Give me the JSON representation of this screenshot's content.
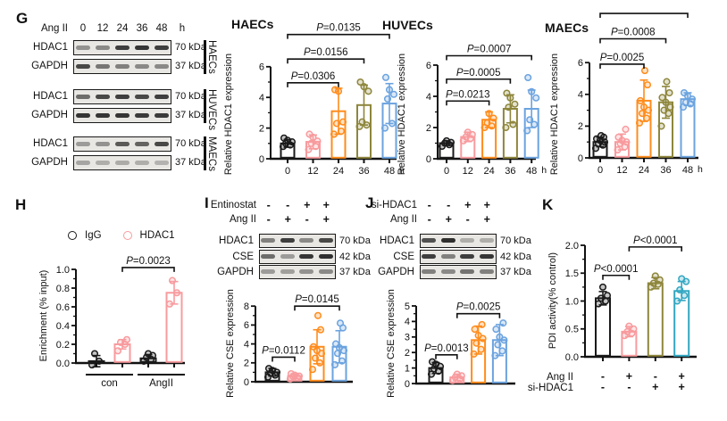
{
  "colors": {
    "black": "#1a1a1a",
    "pink": "#f89b9e",
    "orange": "#ff8c1c",
    "olive": "#8e863c",
    "blue": "#6ba3df",
    "teal": "#33a7c2",
    "axis": "#111111"
  },
  "panels": {
    "G": {
      "label": "G",
      "blot": {
        "header": {
          "label": "Ang II",
          "values": [
            "0",
            "12",
            "24",
            "36",
            "48"
          ],
          "suffix": "h"
        },
        "groups": [
          {
            "cell_line": "HAECs",
            "rows": [
              {
                "protein": "HDAC1",
                "kda": "70 kDa",
                "bands": [
                  0.45,
                  0.5,
                  0.9,
                  0.95,
                  0.9
                ]
              },
              {
                "protein": "GAPDH",
                "kda": "37 kDa",
                "bands": [
                  0.85,
                  0.6,
                  0.55,
                  0.5,
                  0.5
                ]
              }
            ]
          },
          {
            "cell_line": "HUVECs",
            "rows": [
              {
                "protein": "HDAC1",
                "kda": "70 kDa",
                "bands": [
                  0.65,
                  0.85,
                  0.9,
                  0.85,
                  0.9
                ]
              },
              {
                "protein": "GAPDH",
                "kda": "37 kDa",
                "bands": [
                  0.95,
                  0.95,
                  0.95,
                  0.92,
                  0.92
                ]
              }
            ]
          },
          {
            "cell_line": "MAECs",
            "rows": [
              {
                "protein": "HDAC1",
                "kda": "70 kDa",
                "bands": [
                  0.4,
                  0.45,
                  0.75,
                  0.7,
                  0.85
                ]
              },
              {
                "protein": "GAPDH",
                "kda": "37 kDa",
                "bands": [
                  0.35,
                  0.3,
                  0.32,
                  0.3,
                  0.28
                ]
              }
            ]
          }
        ]
      }
    },
    "H": {
      "label": "H",
      "legend": [
        {
          "label": "IgG",
          "color": "black"
        },
        {
          "label": "HDAC1",
          "color": "pink"
        }
      ]
    },
    "I": {
      "label": "I",
      "blot": {
        "header_rows": [
          {
            "label": "Entinostat",
            "values": [
              "-",
              "-",
              "+",
              "+"
            ]
          },
          {
            "label": "Ang II",
            "values": [
              "-",
              "+",
              "-",
              "+"
            ]
          }
        ],
        "rows": [
          {
            "protein": "HDAC1",
            "kda": "70 kDa",
            "bands": [
              0.55,
              0.9,
              0.5,
              0.85
            ]
          },
          {
            "protein": "CSE",
            "kda": "42 kDa",
            "bands": [
              0.65,
              0.4,
              0.95,
              0.98
            ]
          },
          {
            "protein": "GAPDH",
            "kda": "37 kDa",
            "bands": [
              0.4,
              0.38,
              0.45,
              0.5
            ]
          }
        ]
      }
    },
    "J": {
      "label": "J",
      "blot": {
        "header_rows": [
          {
            "label": "si-HDAC1",
            "values": [
              "-",
              "-",
              "+",
              "+"
            ]
          },
          {
            "label": "Ang II",
            "values": [
              "-",
              "+",
              "-",
              "+"
            ]
          }
        ],
        "rows": [
          {
            "protein": "HDAC1",
            "kda": "70 kDa",
            "bands": [
              0.8,
              0.98,
              0.3,
              0.3
            ]
          },
          {
            "protein": "CSE",
            "kda": "42 kDa",
            "bands": [
              0.9,
              0.55,
              0.9,
              0.95
            ]
          },
          {
            "protein": "GAPDH",
            "kda": "37 kDa",
            "bands": [
              0.55,
              0.5,
              0.62,
              0.55
            ]
          }
        ]
      }
    },
    "K": {
      "label": "K"
    }
  },
  "chart_data": [
    {
      "id": "haecs",
      "type": "bar",
      "title": "HAECs",
      "ylabel": "Relative HDAC1 expression",
      "categories": [
        "0",
        "12",
        "24",
        "36",
        "48"
      ],
      "x_suffix": "h",
      "values": [
        1.0,
        1.1,
        3.1,
        3.5,
        3.6
      ],
      "errors": [
        0.25,
        0.45,
        1.5,
        1.3,
        1.3
      ],
      "points": [
        [
          0.8,
          0.9,
          1.0,
          1.1,
          1.2,
          1.35
        ],
        [
          0.6,
          0.8,
          1.0,
          1.15,
          1.4,
          1.6
        ],
        [
          1.6,
          1.8,
          2.3,
          2.4,
          4.4,
          4.5
        ],
        [
          2.1,
          2.2,
          2.4,
          4.4,
          4.7,
          5.0
        ],
        [
          2.0,
          2.3,
          3.9,
          4.2,
          4.5,
          5.3
        ]
      ],
      "colors": [
        "black",
        "pink",
        "orange",
        "olive",
        "blue"
      ],
      "ylim": [
        0,
        6
      ],
      "yticks": [
        0,
        2,
        4,
        6
      ],
      "brackets": [
        {
          "from": 0,
          "to": 2,
          "y": 4.95,
          "label": "P=0.0306"
        },
        {
          "from": 0,
          "to": 3,
          "y": 6.5,
          "label": "P=0.0156"
        },
        {
          "from": 0,
          "to": 4,
          "y": 8.1,
          "label": "P=0.0135"
        }
      ],
      "layout": {
        "left": 65,
        "xpad": 19,
        "step": 28.5,
        "right": 6,
        "bottom": 30,
        "ppu": 17.2,
        "barw": 15,
        "xticks": true
      }
    },
    {
      "id": "huvecs",
      "type": "bar",
      "title": "HUVECs",
      "ylabel": "Relative HDAC1 expression",
      "categories": [
        "0",
        "12",
        "24",
        "36",
        "48"
      ],
      "x_suffix": "h",
      "values": [
        1.0,
        1.4,
        2.5,
        3.2,
        3.2
      ],
      "errors": [
        0.15,
        0.3,
        0.5,
        0.9,
        1.2
      ],
      "points": [
        [
          0.8,
          0.9,
          1.0,
          1.05,
          1.15
        ],
        [
          1.15,
          1.3,
          1.4,
          1.55,
          1.7
        ],
        [
          2.0,
          2.1,
          2.3,
          2.6,
          2.9
        ],
        [
          2.0,
          2.2,
          3.3,
          3.5,
          3.9,
          4.2
        ],
        [
          1.8,
          2.2,
          2.5,
          3.9,
          4.3,
          5.2
        ]
      ],
      "colors": [
        "black",
        "pink",
        "orange",
        "olive",
        "blue"
      ],
      "ylim": [
        0,
        6
      ],
      "yticks": [
        0,
        2,
        4,
        6
      ],
      "brackets": [
        {
          "from": 0,
          "to": 2,
          "y": 3.7,
          "label": "P=0.0213"
        },
        {
          "from": 0,
          "to": 3,
          "y": 5.1,
          "label": "P=0.0005"
        },
        {
          "from": 0,
          "to": 4,
          "y": 6.6,
          "label": "P=0.0007"
        }
      ],
      "layout": {
        "left": 65,
        "xpad": 10,
        "step": 23.8,
        "right": 25,
        "bottom": 30,
        "ppu": 17.5,
        "barw": 15,
        "xticks": true
      }
    },
    {
      "id": "maecs",
      "type": "bar",
      "title": "MAECs",
      "ylabel": "Relative HDAC1 expression",
      "categories": [
        "0",
        "12",
        "24",
        "36",
        "48"
      ],
      "x_suffix": "h",
      "values": [
        1.0,
        1.0,
        3.6,
        3.5,
        3.7
      ],
      "errors": [
        0.3,
        0.5,
        1.3,
        1.0,
        0.4
      ],
      "points": [
        [
          0.6,
          0.8,
          0.9,
          1.0,
          1.1,
          1.2,
          1.3,
          1.4
        ],
        [
          0.5,
          0.7,
          0.9,
          1.0,
          1.1,
          1.3,
          1.8
        ],
        [
          2.2,
          2.5,
          2.8,
          3.0,
          3.2,
          3.6,
          4.6,
          5.5
        ],
        [
          2.0,
          2.8,
          3.0,
          3.2,
          3.5,
          3.8,
          4.1,
          4.8
        ],
        [
          3.2,
          3.4,
          3.5,
          3.7,
          3.9,
          4.1
        ]
      ],
      "colors": [
        "black",
        "pink",
        "orange",
        "olive",
        "blue"
      ],
      "ylim": [
        0,
        6
      ],
      "yticks": [
        0,
        2,
        4,
        6
      ],
      "brackets": [
        {
          "from": 0,
          "to": 2,
          "y": 5.9,
          "label": "P=0.0025"
        },
        {
          "from": 0,
          "to": 3,
          "y": 7.5,
          "label": "P=0.0008"
        },
        {
          "from": 0,
          "to": 4,
          "y": 9.1,
          "label": ""
        }
      ],
      "layout": {
        "left": 48,
        "xpad": 12,
        "step": 24.5,
        "right": 30,
        "bottom": 31,
        "ppu": 17.8,
        "barw": 15,
        "xticks": true
      }
    },
    {
      "id": "chip-enrichment",
      "type": "bar",
      "ylabel": "Enrichment (% input)",
      "values": [
        0.02,
        0.2,
        0.05,
        0.75
      ],
      "errors": [
        0.06,
        0.05,
        0.04,
        0.12
      ],
      "points": [
        [
          -0.02,
          0.02,
          0.1
        ],
        [
          0.13,
          0.2,
          0.22,
          0.25
        ],
        [
          0.02,
          0.04,
          0.06,
          0.08,
          0.1
        ],
        [
          0.63,
          0.75,
          0.88
        ]
      ],
      "colors": [
        "black",
        "pink",
        "black",
        "pink"
      ],
      "ylim": [
        0,
        1
      ],
      "yticks": [
        0,
        0.2,
        0.4,
        0.6,
        0.8,
        1
      ],
      "ytick_labels": [
        "0.0",
        "0.2",
        "0.4",
        "0.6",
        "0.8",
        "1.0"
      ],
      "group_labels": [
        {
          "label": "con",
          "from": 0,
          "to": 1
        },
        {
          "label": "AngII",
          "from": 2,
          "to": 3
        }
      ],
      "brackets": [
        {
          "from": 1,
          "to": 3,
          "y": 1.02,
          "label": "P=0.0023"
        }
      ],
      "layout": {
        "left": 45,
        "xpad": 23,
        "step": 29,
        "right": 33,
        "bottom": 38,
        "ppu": 105,
        "barw": 17,
        "xticks": true
      }
    },
    {
      "id": "cse-entinostat",
      "type": "bar",
      "ylabel": "Relative CSE expression",
      "values": [
        1.0,
        0.6,
        3.7,
        3.7
      ],
      "errors": [
        0.4,
        0.25,
        1.8,
        1.7
      ],
      "points": [
        [
          0.5,
          0.7,
          0.9,
          1.0,
          1.2,
          1.4
        ],
        [
          0.3,
          0.45,
          0.55,
          0.6,
          0.7,
          0.85
        ],
        [
          1.3,
          2.0,
          2.5,
          3.0,
          3.3,
          3.7,
          5.5,
          7.0
        ],
        [
          1.8,
          2.2,
          3.0,
          3.3,
          3.6,
          4.0,
          5.7,
          6.2
        ]
      ],
      "colors": [
        "black",
        "pink",
        "orange",
        "blue"
      ],
      "ylim": [
        0,
        8
      ],
      "yticks": [
        0,
        2,
        4,
        6,
        8
      ],
      "brackets": [
        {
          "from": 0,
          "to": 1,
          "y": 2.6,
          "label": "P=0.0112"
        },
        {
          "from": 1,
          "to": 3,
          "y": 8.0,
          "label": "P=0.0145"
        }
      ],
      "layout": {
        "left": 44,
        "xpad": 19,
        "step": 25,
        "right": 22,
        "bottom": 12,
        "ppu": 10.6,
        "barw": 15,
        "xticks": false
      }
    },
    {
      "id": "cse-sihdac1",
      "type": "bar",
      "ylabel": "Relative CSE expression",
      "values": [
        1.0,
        0.4,
        2.8,
        2.8
      ],
      "errors": [
        0.35,
        0.2,
        0.9,
        1.0
      ],
      "points": [
        [
          0.6,
          0.8,
          0.95,
          1.1,
          1.25,
          1.4
        ],
        [
          0.2,
          0.3,
          0.4,
          0.5,
          0.6
        ],
        [
          1.9,
          2.2,
          2.6,
          2.9,
          3.1,
          3.5,
          3.8
        ],
        [
          1.8,
          2.1,
          2.5,
          2.8,
          3.0,
          3.5,
          3.9
        ]
      ],
      "colors": [
        "black",
        "pink",
        "orange",
        "blue"
      ],
      "ylim": [
        0,
        5
      ],
      "yticks": [
        0,
        1,
        2,
        3,
        4,
        5
      ],
      "brackets": [
        {
          "from": 0,
          "to": 1,
          "y": 1.85,
          "label": "P=0.0013"
        },
        {
          "from": 1,
          "to": 3,
          "y": 4.5,
          "label": "P=0.0025"
        }
      ],
      "layout": {
        "left": 44,
        "xpad": 22,
        "step": 23.8,
        "right": 20,
        "bottom": 10,
        "ppu": 17.4,
        "barw": 15,
        "xticks": false
      }
    },
    {
      "id": "pdi-activity",
      "type": "bar",
      "ylabel": "PDI activity(% control)",
      "values": [
        1.05,
        0.45,
        1.32,
        1.18
      ],
      "errors": [
        0.12,
        0.09,
        0.1,
        0.17
      ],
      "points": [
        [
          0.95,
          1.0,
          1.05,
          1.1,
          1.25
        ],
        [
          0.38,
          0.42,
          0.45,
          0.5,
          0.55
        ],
        [
          1.25,
          1.3,
          1.32,
          1.38,
          1.45
        ],
        [
          1.0,
          1.1,
          1.2,
          1.35,
          1.4
        ]
      ],
      "colors": [
        "black",
        "pink",
        "olive",
        "teal"
      ],
      "ylim": [
        0,
        2
      ],
      "yticks": [
        0,
        0.5,
        1,
        1.5,
        2
      ],
      "ytick_labels": [
        "0.0",
        "0.5",
        "1.0",
        "1.5",
        "2.0"
      ],
      "brackets": [
        {
          "from": 0,
          "to": 1,
          "y": 1.46,
          "label": "P<0.0001"
        },
        {
          "from": 1,
          "to": 3,
          "y": 1.97,
          "label": "P<0.0001"
        }
      ],
      "xrows": [
        {
          "label": "Ang II",
          "values": [
            "-",
            "+",
            "-",
            "+"
          ]
        },
        {
          "label": "si-HDAC1",
          "values": [
            "-",
            "-",
            "+",
            "+"
          ]
        }
      ],
      "layout": {
        "left": 55,
        "xpad": 20,
        "step": 29.4,
        "right": 32,
        "bottom": 72,
        "ppu": 62.5,
        "barw": 16,
        "xticks": true
      }
    }
  ]
}
